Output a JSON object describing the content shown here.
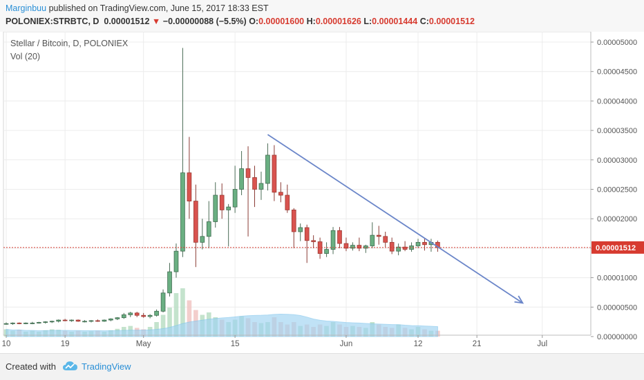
{
  "header": {
    "author": "Marginbuu",
    "published_text": "published on TradingView.com, June 15, 2017 18:33 EST",
    "symbol": "POLONIEX:STRBTC, D",
    "last_price": "0.00001512",
    "change_arrow": "▼",
    "change": "−0.00000088 (−5.5%)",
    "o_label": "O:",
    "o_value": "0.00001600",
    "h_label": "H:",
    "h_value": "0.00001626",
    "l_label": "L:",
    "l_value": "0.00001444",
    "c_label": "C:",
    "c_value": "0.00001512"
  },
  "legend": {
    "title": "Stellar / Bitcoin, D, POLONIEX",
    "indicator": "Vol (20)"
  },
  "footer": {
    "created_with": "Created with",
    "brand": "TradingView"
  },
  "colors": {
    "up": "#5fa476",
    "down": "#d9534f",
    "up_fill": "#6aaf82",
    "trendline": "#6b86c9",
    "price_line": "#d73b30",
    "volume_ma": "#9fd3f2",
    "vol_up": "#b5dcc0",
    "vol_down": "#f0c2bf"
  },
  "chart_data": {
    "type": "candlestick",
    "title": "Stellar / Bitcoin, D, POLONIEX",
    "indicator": "Vol (20)",
    "ylim": [
      0,
      5e-05
    ],
    "y_ticks": [
      "0.00005000",
      "0.00004500",
      "0.00004000",
      "0.00003500",
      "0.00003000",
      "0.00002500",
      "0.00002000",
      "0.00001500",
      "0.00001000",
      "0.00000500",
      "0.00000000"
    ],
    "y_tick_values": [
      5e-05,
      4.5e-05,
      4e-05,
      3.5e-05,
      3e-05,
      2.5e-05,
      2e-05,
      1.5e-05,
      1e-05,
      5e-06,
      0
    ],
    "x_ticks": [
      "10",
      "19",
      "May",
      "15",
      "Jun",
      "12",
      "21",
      "Jul"
    ],
    "x_tick_dates": [
      "2017-04-10",
      "2017-04-19",
      "2017-05-01",
      "2017-05-15",
      "2017-06-01",
      "2017-06-12",
      "2017-06-21",
      "2017-07-01"
    ],
    "x_range": [
      "2017-04-10",
      "2017-07-08"
    ],
    "current_price_label": "0.00001512",
    "current_price": 1.512e-05,
    "candles": [
      {
        "date": "2017-04-10",
        "o": 2.2e-06,
        "h": 2.4e-06,
        "l": 2e-06,
        "c": 2.2e-06
      },
      {
        "date": "2017-04-11",
        "o": 2.2e-06,
        "h": 2.4e-06,
        "l": 2e-06,
        "c": 2.3e-06
      },
      {
        "date": "2017-04-12",
        "o": 2.3e-06,
        "h": 2.4e-06,
        "l": 2.1e-06,
        "c": 2.2e-06
      },
      {
        "date": "2017-04-13",
        "o": 2.2e-06,
        "h": 2.4e-06,
        "l": 2.1e-06,
        "c": 2.3e-06
      },
      {
        "date": "2017-04-14",
        "o": 2.3e-06,
        "h": 2.5e-06,
        "l": 2.1e-06,
        "c": 2.3e-06
      },
      {
        "date": "2017-04-15",
        "o": 2.3e-06,
        "h": 2.5e-06,
        "l": 2.2e-06,
        "c": 2.4e-06
      },
      {
        "date": "2017-04-16",
        "o": 2.4e-06,
        "h": 2.6e-06,
        "l": 2.2e-06,
        "c": 2.5e-06
      },
      {
        "date": "2017-04-17",
        "o": 2.5e-06,
        "h": 2.7e-06,
        "l": 2.3e-06,
        "c": 2.6e-06
      },
      {
        "date": "2017-04-18",
        "o": 2.6e-06,
        "h": 2.9e-06,
        "l": 2.4e-06,
        "c": 2.8e-06
      },
      {
        "date": "2017-04-19",
        "o": 2.8e-06,
        "h": 3e-06,
        "l": 2.6e-06,
        "c": 2.7e-06
      },
      {
        "date": "2017-04-20",
        "o": 2.7e-06,
        "h": 2.9e-06,
        "l": 2.5e-06,
        "c": 2.8e-06
      },
      {
        "date": "2017-04-21",
        "o": 2.8e-06,
        "h": 2.9e-06,
        "l": 2.5e-06,
        "c": 2.6e-06
      },
      {
        "date": "2017-04-22",
        "o": 2.6e-06,
        "h": 2.8e-06,
        "l": 2.4e-06,
        "c": 2.6e-06
      },
      {
        "date": "2017-04-23",
        "o": 2.6e-06,
        "h": 2.8e-06,
        "l": 2.4e-06,
        "c": 2.7e-06
      },
      {
        "date": "2017-04-24",
        "o": 2.7e-06,
        "h": 2.9e-06,
        "l": 2.5e-06,
        "c": 2.6e-06
      },
      {
        "date": "2017-04-25",
        "o": 2.6e-06,
        "h": 2.9e-06,
        "l": 2.5e-06,
        "c": 2.8e-06
      },
      {
        "date": "2017-04-26",
        "o": 2.8e-06,
        "h": 3.1e-06,
        "l": 2.6e-06,
        "c": 3e-06
      },
      {
        "date": "2017-04-27",
        "o": 3e-06,
        "h": 3.3e-06,
        "l": 2.8e-06,
        "c": 3.2e-06
      },
      {
        "date": "2017-04-28",
        "o": 3.2e-06,
        "h": 4e-06,
        "l": 3e-06,
        "c": 3.7e-06
      },
      {
        "date": "2017-04-29",
        "o": 3.7e-06,
        "h": 4.2e-06,
        "l": 3.3e-06,
        "c": 4e-06
      },
      {
        "date": "2017-04-30",
        "o": 4e-06,
        "h": 4.2e-06,
        "l": 3.3e-06,
        "c": 3.6e-06
      },
      {
        "date": "2017-05-01",
        "o": 3.6e-06,
        "h": 4e-06,
        "l": 3.2e-06,
        "c": 3.4e-06
      },
      {
        "date": "2017-05-02",
        "o": 3.4e-06,
        "h": 3.8e-06,
        "l": 3.1e-06,
        "c": 3.6e-06
      },
      {
        "date": "2017-05-03",
        "o": 3.6e-06,
        "h": 4.6e-06,
        "l": 3.4e-06,
        "c": 4.3e-06
      },
      {
        "date": "2017-05-04",
        "o": 4.3e-06,
        "h": 8e-06,
        "l": 4.1e-06,
        "c": 7.4e-06
      },
      {
        "date": "2017-05-05",
        "o": 7.4e-06,
        "h": 1.25e-05,
        "l": 6.8e-06,
        "c": 1.1e-05
      },
      {
        "date": "2017-05-06",
        "o": 1.1e-05,
        "h": 1.58e-05,
        "l": 1e-05,
        "c": 1.45e-05
      },
      {
        "date": "2017-05-07",
        "o": 1.45e-05,
        "h": 4.9e-05,
        "l": 1.35e-05,
        "c": 2.78e-05
      },
      {
        "date": "2017-05-08",
        "o": 2.78e-05,
        "h": 3.39e-05,
        "l": 2e-05,
        "c": 2.3e-05
      },
      {
        "date": "2017-05-09",
        "o": 2.3e-05,
        "h": 2.58e-05,
        "l": 1.18e-05,
        "c": 1.6e-05
      },
      {
        "date": "2017-05-10",
        "o": 1.6e-05,
        "h": 2e-05,
        "l": 1.48e-05,
        "c": 1.7e-05
      },
      {
        "date": "2017-05-11",
        "o": 1.7e-05,
        "h": 2.3e-05,
        "l": 1.5e-05,
        "c": 1.95e-05
      },
      {
        "date": "2017-05-12",
        "o": 1.95e-05,
        "h": 2.62e-05,
        "l": 1.85e-05,
        "c": 2.4e-05
      },
      {
        "date": "2017-05-13",
        "o": 2.4e-05,
        "h": 2.6e-05,
        "l": 2e-05,
        "c": 2.15e-05
      },
      {
        "date": "2017-05-14",
        "o": 2.15e-05,
        "h": 2.25e-05,
        "l": 1.53e-05,
        "c": 2.2e-05
      },
      {
        "date": "2017-05-15",
        "o": 2.2e-05,
        "h": 2.9e-05,
        "l": 2.1e-05,
        "c": 2.5e-05
      },
      {
        "date": "2017-05-16",
        "o": 2.5e-05,
        "h": 3.15e-05,
        "l": 2.4e-05,
        "c": 2.85e-05
      },
      {
        "date": "2017-05-17",
        "o": 2.85e-05,
        "h": 3.23e-05,
        "l": 1.7e-05,
        "c": 2.7e-05
      },
      {
        "date": "2017-05-18",
        "o": 2.7e-05,
        "h": 2.9e-05,
        "l": 2.2e-05,
        "c": 2.5e-05
      },
      {
        "date": "2017-05-19",
        "o": 2.5e-05,
        "h": 2.8e-05,
        "l": 2.32e-05,
        "c": 2.6e-05
      },
      {
        "date": "2017-05-20",
        "o": 2.6e-05,
        "h": 3.28e-05,
        "l": 2.48e-05,
        "c": 3.08e-05
      },
      {
        "date": "2017-05-21",
        "o": 3.08e-05,
        "h": 3.25e-05,
        "l": 2.3e-05,
        "c": 2.45e-05
      },
      {
        "date": "2017-05-22",
        "o": 2.45e-05,
        "h": 2.62e-05,
        "l": 2.28e-05,
        "c": 2.4e-05
      },
      {
        "date": "2017-05-23",
        "o": 2.4e-05,
        "h": 2.58e-05,
        "l": 2.1e-05,
        "c": 2.15e-05
      },
      {
        "date": "2017-05-24",
        "o": 2.15e-05,
        "h": 2.18e-05,
        "l": 1.5e-05,
        "c": 1.78e-05
      },
      {
        "date": "2017-05-25",
        "o": 1.78e-05,
        "h": 1.92e-05,
        "l": 1.62e-05,
        "c": 1.85e-05
      },
      {
        "date": "2017-05-26",
        "o": 1.85e-05,
        "h": 1.9e-05,
        "l": 1.25e-05,
        "c": 1.63e-05
      },
      {
        "date": "2017-05-27",
        "o": 1.63e-05,
        "h": 1.72e-05,
        "l": 1.5e-05,
        "c": 1.61e-05
      },
      {
        "date": "2017-05-28",
        "o": 1.61e-05,
        "h": 1.68e-05,
        "l": 1.32e-05,
        "c": 1.41e-05
      },
      {
        "date": "2017-05-29",
        "o": 1.41e-05,
        "h": 1.6e-05,
        "l": 1.35e-05,
        "c": 1.48e-05
      },
      {
        "date": "2017-05-30",
        "o": 1.48e-05,
        "h": 1.86e-05,
        "l": 1.4e-05,
        "c": 1.8e-05
      },
      {
        "date": "2017-05-31",
        "o": 1.8e-05,
        "h": 1.86e-05,
        "l": 1.5e-05,
        "c": 1.58e-05
      },
      {
        "date": "2017-06-01",
        "o": 1.58e-05,
        "h": 1.68e-05,
        "l": 1.45e-05,
        "c": 1.5e-05
      },
      {
        "date": "2017-06-02",
        "o": 1.5e-05,
        "h": 1.6e-05,
        "l": 1.46e-05,
        "c": 1.55e-05
      },
      {
        "date": "2017-06-03",
        "o": 1.55e-05,
        "h": 1.68e-05,
        "l": 1.45e-05,
        "c": 1.5e-05
      },
      {
        "date": "2017-06-04",
        "o": 1.5e-05,
        "h": 1.56e-05,
        "l": 1.42e-05,
        "c": 1.54e-05
      },
      {
        "date": "2017-06-05",
        "o": 1.54e-05,
        "h": 1.94e-05,
        "l": 1.5e-05,
        "c": 1.72e-05
      },
      {
        "date": "2017-06-06",
        "o": 1.72e-05,
        "h": 1.88e-05,
        "l": 1.56e-05,
        "c": 1.7e-05
      },
      {
        "date": "2017-06-07",
        "o": 1.7e-05,
        "h": 1.78e-05,
        "l": 1.52e-05,
        "c": 1.6e-05
      },
      {
        "date": "2017-06-08",
        "o": 1.6e-05,
        "h": 1.68e-05,
        "l": 1.4e-05,
        "c": 1.45e-05
      },
      {
        "date": "2017-06-09",
        "o": 1.45e-05,
        "h": 1.58e-05,
        "l": 1.38e-05,
        "c": 1.52e-05
      },
      {
        "date": "2017-06-10",
        "o": 1.52e-05,
        "h": 1.62e-05,
        "l": 1.45e-05,
        "c": 1.48e-05
      },
      {
        "date": "2017-06-11",
        "o": 1.48e-05,
        "h": 1.6e-05,
        "l": 1.44e-05,
        "c": 1.54e-05
      },
      {
        "date": "2017-06-12",
        "o": 1.54e-05,
        "h": 1.66e-05,
        "l": 1.5e-05,
        "c": 1.6e-05
      },
      {
        "date": "2017-06-13",
        "o": 1.6e-05,
        "h": 1.66e-05,
        "l": 1.46e-05,
        "c": 1.56e-05
      },
      {
        "date": "2017-06-14",
        "o": 1.56e-05,
        "h": 1.66e-05,
        "l": 1.44e-05,
        "c": 1.6e-05
      },
      {
        "date": "2017-06-15",
        "o": 1.6e-05,
        "h": 1.63e-05,
        "l": 1.44e-05,
        "c": 1.51e-05
      }
    ],
    "volume_levels": [
      0.15,
      0.12,
      0.14,
      0.1,
      0.12,
      0.1,
      0.13,
      0.15,
      0.14,
      0.12,
      0.1,
      0.12,
      0.1,
      0.11,
      0.12,
      0.1,
      0.13,
      0.16,
      0.2,
      0.22,
      0.18,
      0.15,
      0.2,
      0.3,
      0.45,
      0.6,
      0.9,
      1.0,
      0.75,
      0.55,
      0.45,
      0.5,
      0.4,
      0.35,
      0.3,
      0.35,
      0.42,
      0.38,
      0.3,
      0.28,
      0.3,
      0.4,
      0.3,
      0.25,
      0.3,
      0.22,
      0.25,
      0.2,
      0.25,
      0.22,
      0.3,
      0.25,
      0.2,
      0.22,
      0.2,
      0.18,
      0.3,
      0.25,
      0.2,
      0.18,
      0.25,
      0.18,
      0.15,
      0.2,
      0.15,
      0.12,
      0.12
    ],
    "trendline": {
      "from": {
        "date": "2017-05-20",
        "price": 3.43e-05
      },
      "to": {
        "date": "2017-06-28",
        "price": 5.7e-06
      }
    }
  }
}
